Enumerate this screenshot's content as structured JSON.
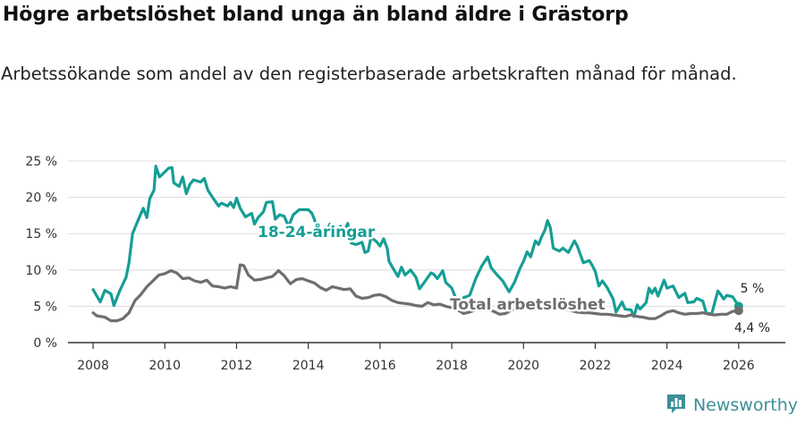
{
  "title": "Högre arbetslöshet bland unga än bland äldre i Grästorp",
  "subtitle": "Arbetssökande som andel av den registerbaserade arbetskraften månad för månad.",
  "brand": "Newsworthy",
  "colors": {
    "youth": "#159e95",
    "total": "#6e6e6e",
    "grid": "#dddddd",
    "axis": "#333333",
    "brand": "#3e8f98"
  },
  "chart_data": {
    "type": "line",
    "title": "Högre arbetslöshet bland unga än bland äldre i Grästorp",
    "subtitle": "Arbetssökande som andel av den registerbaserade arbetskraften månad för månad.",
    "xlabel": "",
    "ylabel": "",
    "xlim": [
      2007.3,
      2027.3
    ],
    "ylim": [
      0,
      25
    ],
    "grid": true,
    "x_ticks": [
      2008,
      2010,
      2012,
      2014,
      2016,
      2018,
      2020,
      2022,
      2024,
      2026
    ],
    "x_tick_labels": [
      "2008",
      "2010",
      "2012",
      "2014",
      "2016",
      "2018",
      "2020",
      "2022",
      "2024",
      "2026"
    ],
    "y_ticks": [
      0,
      5,
      10,
      15,
      20,
      25
    ],
    "y_tick_labels": [
      "0 %",
      "5 %",
      "10 %",
      "15 %",
      "20 %",
      "25 %"
    ],
    "series": [
      {
        "name": "18-24-åringar",
        "label": "18-24-åringar",
        "color": "#159e95",
        "last_label": "5 %",
        "points": [
          [
            2008.0,
            7.3
          ],
          [
            2008.2,
            5.6
          ],
          [
            2008.33,
            7.2
          ],
          [
            2008.5,
            6.7
          ],
          [
            2008.58,
            5.1
          ],
          [
            2008.75,
            7.2
          ],
          [
            2008.92,
            9.0
          ],
          [
            2009.0,
            11.0
          ],
          [
            2009.1,
            15.0
          ],
          [
            2009.25,
            16.8
          ],
          [
            2009.4,
            18.5
          ],
          [
            2009.5,
            17.2
          ],
          [
            2009.58,
            19.8
          ],
          [
            2009.7,
            21.0
          ],
          [
            2009.75,
            24.3
          ],
          [
            2009.85,
            22.8
          ],
          [
            2010.0,
            23.5
          ],
          [
            2010.1,
            24.0
          ],
          [
            2010.2,
            24.1
          ],
          [
            2010.25,
            22.0
          ],
          [
            2010.4,
            21.5
          ],
          [
            2010.5,
            22.8
          ],
          [
            2010.6,
            20.5
          ],
          [
            2010.7,
            21.8
          ],
          [
            2010.8,
            22.4
          ],
          [
            2011.0,
            22.1
          ],
          [
            2011.1,
            22.6
          ],
          [
            2011.2,
            21.0
          ],
          [
            2011.33,
            20.0
          ],
          [
            2011.5,
            18.8
          ],
          [
            2011.58,
            19.2
          ],
          [
            2011.75,
            18.8
          ],
          [
            2011.83,
            19.3
          ],
          [
            2011.92,
            18.6
          ],
          [
            2012.0,
            19.9
          ],
          [
            2012.1,
            18.5
          ],
          [
            2012.25,
            17.3
          ],
          [
            2012.42,
            17.8
          ],
          [
            2012.5,
            16.3
          ],
          [
            2012.6,
            17.2
          ],
          [
            2012.75,
            18.0
          ],
          [
            2012.83,
            19.3
          ],
          [
            2013.0,
            19.4
          ],
          [
            2013.08,
            17.0
          ],
          [
            2013.2,
            17.6
          ],
          [
            2013.33,
            17.4
          ],
          [
            2013.45,
            16.0
          ],
          [
            2013.58,
            17.6
          ],
          [
            2013.75,
            18.3
          ],
          [
            2014.0,
            18.3
          ],
          [
            2014.1,
            17.8
          ],
          [
            2014.25,
            16.0
          ],
          [
            2014.42,
            14.5
          ],
          [
            2014.6,
            16.3
          ],
          [
            2014.75,
            15.5
          ],
          [
            2014.9,
            16.0
          ],
          [
            2015.0,
            15.3
          ],
          [
            2015.1,
            16.4
          ],
          [
            2015.2,
            13.7
          ],
          [
            2015.33,
            13.5
          ],
          [
            2015.5,
            13.8
          ],
          [
            2015.58,
            12.4
          ],
          [
            2015.67,
            12.6
          ],
          [
            2015.75,
            14.5
          ],
          [
            2015.9,
            13.9
          ],
          [
            2016.0,
            13.3
          ],
          [
            2016.1,
            14.3
          ],
          [
            2016.2,
            13.0
          ],
          [
            2016.25,
            11.2
          ],
          [
            2016.33,
            10.5
          ],
          [
            2016.5,
            9.1
          ],
          [
            2016.6,
            10.4
          ],
          [
            2016.7,
            9.3
          ],
          [
            2016.85,
            10.0
          ],
          [
            2017.0,
            9.0
          ],
          [
            2017.1,
            7.4
          ],
          [
            2017.25,
            8.4
          ],
          [
            2017.42,
            9.6
          ],
          [
            2017.5,
            9.4
          ],
          [
            2017.6,
            8.8
          ],
          [
            2017.75,
            9.9
          ],
          [
            2017.83,
            8.3
          ],
          [
            2018.0,
            7.5
          ],
          [
            2018.2,
            5.0
          ],
          [
            2018.33,
            6.2
          ],
          [
            2018.5,
            6.5
          ],
          [
            2018.67,
            8.8
          ],
          [
            2018.83,
            10.5
          ],
          [
            2019.0,
            11.8
          ],
          [
            2019.1,
            10.3
          ],
          [
            2019.25,
            9.4
          ],
          [
            2019.42,
            8.5
          ],
          [
            2019.6,
            7.0
          ],
          [
            2019.75,
            8.3
          ],
          [
            2019.9,
            10.2
          ],
          [
            2020.0,
            11.2
          ],
          [
            2020.1,
            12.5
          ],
          [
            2020.2,
            11.8
          ],
          [
            2020.33,
            14.0
          ],
          [
            2020.42,
            13.5
          ],
          [
            2020.5,
            14.5
          ],
          [
            2020.6,
            15.5
          ],
          [
            2020.67,
            16.8
          ],
          [
            2020.75,
            15.8
          ],
          [
            2020.83,
            13.0
          ],
          [
            2021.0,
            12.6
          ],
          [
            2021.1,
            13.0
          ],
          [
            2021.25,
            12.4
          ],
          [
            2021.42,
            14.0
          ],
          [
            2021.5,
            13.3
          ],
          [
            2021.67,
            11.0
          ],
          [
            2021.83,
            11.3
          ],
          [
            2021.92,
            10.6
          ],
          [
            2022.0,
            9.8
          ],
          [
            2022.1,
            7.8
          ],
          [
            2022.2,
            8.5
          ],
          [
            2022.33,
            7.6
          ],
          [
            2022.5,
            6.0
          ],
          [
            2022.58,
            4.2
          ],
          [
            2022.75,
            5.6
          ],
          [
            2022.83,
            4.6
          ],
          [
            2023.0,
            4.5
          ],
          [
            2023.08,
            3.6
          ],
          [
            2023.17,
            5.2
          ],
          [
            2023.25,
            4.6
          ],
          [
            2023.42,
            5.5
          ],
          [
            2023.5,
            7.5
          ],
          [
            2023.58,
            6.8
          ],
          [
            2023.67,
            7.5
          ],
          [
            2023.75,
            6.4
          ],
          [
            2023.92,
            8.6
          ],
          [
            2024.0,
            7.5
          ],
          [
            2024.17,
            7.8
          ],
          [
            2024.33,
            6.2
          ],
          [
            2024.5,
            6.8
          ],
          [
            2024.58,
            5.5
          ],
          [
            2024.75,
            5.6
          ],
          [
            2024.83,
            6.1
          ],
          [
            2025.0,
            5.7
          ],
          [
            2025.1,
            4.0
          ],
          [
            2025.25,
            4.0
          ],
          [
            2025.42,
            7.1
          ],
          [
            2025.5,
            6.6
          ],
          [
            2025.58,
            6.0
          ],
          [
            2025.67,
            6.5
          ],
          [
            2025.83,
            6.3
          ],
          [
            2026.0,
            5.0
          ]
        ]
      },
      {
        "name": "Total arbetslöshet",
        "label": "Total arbetslöshet",
        "color": "#6e6e6e",
        "last_label": "4,4 %",
        "points": [
          [
            2008.0,
            4.1
          ],
          [
            2008.1,
            3.7
          ],
          [
            2008.33,
            3.5
          ],
          [
            2008.5,
            3.0
          ],
          [
            2008.67,
            3.0
          ],
          [
            2008.83,
            3.3
          ],
          [
            2009.0,
            4.1
          ],
          [
            2009.17,
            5.8
          ],
          [
            2009.33,
            6.6
          ],
          [
            2009.5,
            7.7
          ],
          [
            2009.67,
            8.5
          ],
          [
            2009.83,
            9.3
          ],
          [
            2010.0,
            9.5
          ],
          [
            2010.17,
            9.9
          ],
          [
            2010.33,
            9.6
          ],
          [
            2010.5,
            8.8
          ],
          [
            2010.67,
            8.9
          ],
          [
            2010.83,
            8.5
          ],
          [
            2011.0,
            8.3
          ],
          [
            2011.17,
            8.6
          ],
          [
            2011.33,
            7.8
          ],
          [
            2011.5,
            7.7
          ],
          [
            2011.67,
            7.5
          ],
          [
            2011.83,
            7.7
          ],
          [
            2012.0,
            7.5
          ],
          [
            2012.1,
            10.7
          ],
          [
            2012.2,
            10.6
          ],
          [
            2012.33,
            9.3
          ],
          [
            2012.5,
            8.6
          ],
          [
            2012.67,
            8.7
          ],
          [
            2012.83,
            8.9
          ],
          [
            2013.0,
            9.1
          ],
          [
            2013.17,
            9.9
          ],
          [
            2013.33,
            9.2
          ],
          [
            2013.5,
            8.1
          ],
          [
            2013.67,
            8.7
          ],
          [
            2013.83,
            8.8
          ],
          [
            2014.0,
            8.5
          ],
          [
            2014.17,
            8.2
          ],
          [
            2014.33,
            7.6
          ],
          [
            2014.5,
            7.2
          ],
          [
            2014.67,
            7.7
          ],
          [
            2014.83,
            7.5
          ],
          [
            2015.0,
            7.3
          ],
          [
            2015.17,
            7.4
          ],
          [
            2015.33,
            6.4
          ],
          [
            2015.5,
            6.1
          ],
          [
            2015.67,
            6.2
          ],
          [
            2015.83,
            6.5
          ],
          [
            2016.0,
            6.6
          ],
          [
            2016.17,
            6.3
          ],
          [
            2016.33,
            5.8
          ],
          [
            2016.5,
            5.5
          ],
          [
            2016.67,
            5.4
          ],
          [
            2016.83,
            5.3
          ],
          [
            2017.0,
            5.1
          ],
          [
            2017.17,
            5.0
          ],
          [
            2017.33,
            5.5
          ],
          [
            2017.5,
            5.2
          ],
          [
            2017.67,
            5.3
          ],
          [
            2017.83,
            5.0
          ],
          [
            2018.0,
            4.8
          ],
          [
            2018.17,
            4.5
          ],
          [
            2018.33,
            4.0
          ],
          [
            2018.5,
            4.2
          ],
          [
            2018.67,
            4.5
          ],
          [
            2018.83,
            4.5
          ],
          [
            2019.0,
            4.6
          ],
          [
            2019.17,
            4.3
          ],
          [
            2019.33,
            3.9
          ],
          [
            2019.5,
            4.0
          ],
          [
            2019.67,
            4.5
          ],
          [
            2019.83,
            4.7
          ],
          [
            2020.0,
            5.0
          ],
          [
            2020.17,
            5.4
          ],
          [
            2020.33,
            5.1
          ],
          [
            2020.5,
            5.2
          ],
          [
            2020.67,
            5.0
          ],
          [
            2020.83,
            4.9
          ],
          [
            2021.0,
            4.7
          ],
          [
            2021.17,
            4.6
          ],
          [
            2021.33,
            4.4
          ],
          [
            2021.5,
            4.2
          ],
          [
            2021.67,
            4.1
          ],
          [
            2021.83,
            4.1
          ],
          [
            2022.0,
            4.0
          ],
          [
            2022.17,
            3.9
          ],
          [
            2022.33,
            3.9
          ],
          [
            2022.5,
            3.8
          ],
          [
            2022.67,
            3.7
          ],
          [
            2022.83,
            3.6
          ],
          [
            2023.0,
            3.8
          ],
          [
            2023.17,
            3.6
          ],
          [
            2023.33,
            3.5
          ],
          [
            2023.5,
            3.3
          ],
          [
            2023.67,
            3.3
          ],
          [
            2023.83,
            3.7
          ],
          [
            2024.0,
            4.2
          ],
          [
            2024.17,
            4.4
          ],
          [
            2024.33,
            4.1
          ],
          [
            2024.5,
            3.9
          ],
          [
            2024.67,
            4.0
          ],
          [
            2024.83,
            4.0
          ],
          [
            2025.0,
            4.1
          ],
          [
            2025.17,
            3.9
          ],
          [
            2025.33,
            3.8
          ],
          [
            2025.5,
            3.9
          ],
          [
            2025.67,
            3.9
          ],
          [
            2025.83,
            4.3
          ],
          [
            2026.0,
            4.4
          ]
        ]
      }
    ]
  }
}
